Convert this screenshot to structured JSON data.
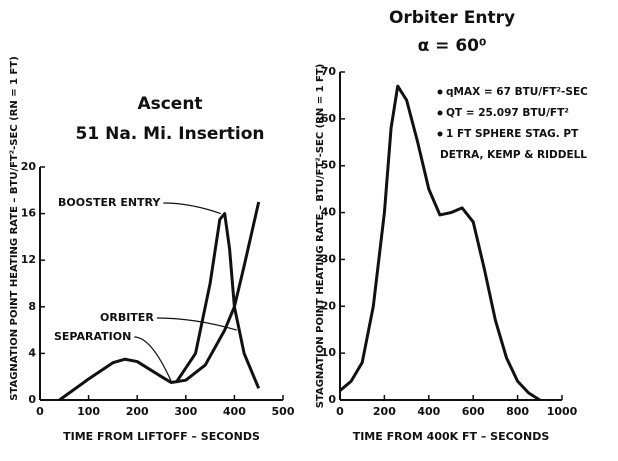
{
  "chart_data": [
    {
      "type": "line",
      "title": "Ascent",
      "subtitle": "51 Na. Mi. Insertion",
      "x_label": "TIME FROM LIFTOFF – SECONDS",
      "y_label": "STAGNATION POINT HEATING RATE – BTU/FT²-SEC (RN = 1 FT)",
      "xlim": [
        0,
        500
      ],
      "xticks": [
        0,
        100,
        200,
        300,
        400,
        500
      ],
      "ylim": [
        0,
        20
      ],
      "yticks": [
        0,
        4,
        8,
        12,
        16,
        20
      ],
      "annotations": [
        "SEPARATION"
      ],
      "series": [
        {
          "name": "BOOSTER ENTRY",
          "color": "#111111",
          "x": [
            280,
            320,
            350,
            370,
            380,
            390,
            400,
            420,
            450
          ],
          "values": [
            1.5,
            4,
            10,
            15.5,
            16,
            13,
            8,
            4,
            1
          ]
        },
        {
          "name": "ORBITER",
          "color": "#111111",
          "x": [
            40,
            100,
            150,
            175,
            200,
            250,
            270,
            300,
            340,
            380,
            400,
            420,
            450
          ],
          "values": [
            0,
            1.8,
            3.2,
            3.5,
            3.3,
            2,
            1.5,
            1.7,
            3,
            6,
            8,
            11.5,
            17
          ]
        }
      ]
    },
    {
      "type": "line",
      "title": "Orbiter Entry",
      "subtitle": "α = 60⁰",
      "x_label": "TIME FROM 400K FT – SECONDS",
      "y_label": "STAGNATION POINT HEATING RATE – BTU/FT²-SEC (RN = 1 FT)",
      "xlim": [
        0,
        1000
      ],
      "xticks": [
        0,
        200,
        400,
        600,
        800,
        1000
      ],
      "ylim": [
        0,
        70
      ],
      "yticks": [
        0,
        10,
        20,
        30,
        40,
        50,
        60,
        70
      ],
      "annotations": [
        "qMAX = 67 BTU/FT²-SEC",
        "QT = 25.097 BTU/FT²",
        "1 FT SPHERE STAG. PT",
        "DETRA, KEMP & RIDDELL"
      ],
      "series": [
        {
          "color": "#111111",
          "x": [
            0,
            50,
            100,
            150,
            200,
            230,
            260,
            300,
            350,
            400,
            450,
            500,
            550,
            600,
            650,
            700,
            750,
            800,
            850,
            900
          ],
          "values": [
            2,
            4,
            8,
            20,
            40,
            58,
            67,
            64,
            55,
            45,
            39.5,
            40,
            41,
            38,
            28,
            17,
            9,
            4,
            1.5,
            0
          ]
        }
      ]
    }
  ]
}
